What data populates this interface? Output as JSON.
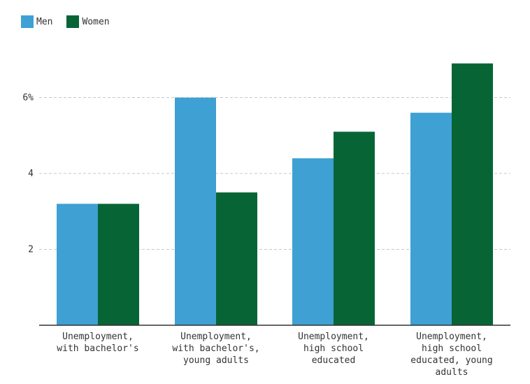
{
  "chart_data": {
    "type": "bar",
    "categories": [
      [
        "Unemployment,",
        "with bachelor's"
      ],
      [
        "Unemployment,",
        "with bachelor's,",
        "young adults"
      ],
      [
        "Unemployment,",
        "high school",
        "educated"
      ],
      [
        "Unemployment,",
        "high school",
        "educated, young",
        "adults"
      ]
    ],
    "series": [
      {
        "name": "Men",
        "color": "#3fa0d3",
        "values": [
          3.2,
          6.0,
          4.4,
          5.6
        ]
      },
      {
        "name": "Women",
        "color": "#076535",
        "values": [
          3.2,
          3.5,
          5.1,
          6.9
        ]
      }
    ],
    "y_ticks": [
      {
        "value": 2,
        "label": "2"
      },
      {
        "value": 4,
        "label": "4"
      },
      {
        "value": 6,
        "label": "6%"
      }
    ],
    "ylim": [
      0,
      8
    ],
    "grid": true,
    "legend_position": "top-left"
  }
}
